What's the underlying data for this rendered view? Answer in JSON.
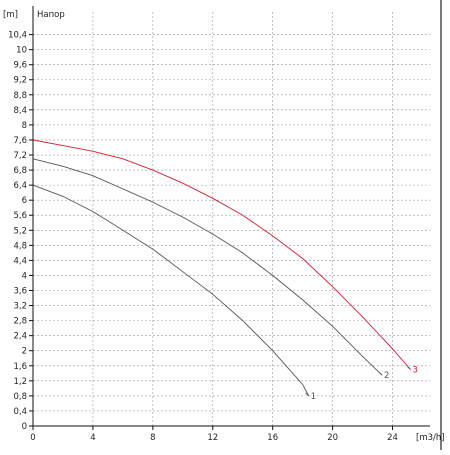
{
  "chart_data": {
    "type": "line",
    "y_unit_label": "[m]",
    "y_title": "Напор",
    "x_unit_label": "[m3/h]",
    "xlim": [
      0,
      26.5
    ],
    "ylim": [
      0,
      11.0
    ],
    "x_ticks": [
      0,
      4,
      8,
      12,
      16,
      20,
      24
    ],
    "y_ticks": [
      0,
      0.4,
      0.8,
      1.2,
      1.6,
      2,
      2.4,
      2.8,
      3.2,
      3.6,
      4,
      4.4,
      4.8,
      5.2,
      5.6,
      6,
      6.4,
      6.8,
      7.2,
      7.6,
      8,
      8.4,
      8.8,
      9.2,
      9.6,
      10,
      10.4
    ],
    "x_tick_labels": [
      "0",
      "4",
      "8",
      "12",
      "16",
      "20",
      "24"
    ],
    "y_tick_labels": [
      "0",
      "0,4",
      "0,8",
      "1,2",
      "1,6",
      "2",
      "2,4",
      "2,8",
      "3,2",
      "3,6",
      "4",
      "4,4",
      "4,8",
      "5,2",
      "5,6",
      "6",
      "6,4",
      "6,8",
      "7,2",
      "7,6",
      "8",
      "8,4",
      "8,8",
      "9,2",
      "9,6",
      "10",
      "10,4"
    ],
    "grid": true,
    "series": [
      {
        "name": "1",
        "color": "#555555",
        "x": [
          0,
          2,
          4,
          6,
          8,
          10,
          12,
          14,
          16,
          18,
          18.4
        ],
        "y": [
          6.4,
          6.1,
          5.7,
          5.2,
          4.7,
          4.1,
          3.5,
          2.8,
          2.0,
          1.1,
          0.8
        ]
      },
      {
        "name": "2",
        "color": "#555555",
        "x": [
          0,
          2,
          4,
          6,
          8,
          10,
          12,
          14,
          16,
          18,
          20,
          22,
          23.3
        ],
        "y": [
          7.1,
          6.9,
          6.65,
          6.3,
          5.95,
          5.55,
          5.1,
          4.6,
          4.0,
          3.35,
          2.65,
          1.85,
          1.35
        ]
      },
      {
        "name": "3",
        "color": "#cc2233",
        "x": [
          0,
          2,
          4,
          6,
          8,
          10,
          12,
          14,
          16,
          18,
          20,
          22,
          24,
          25.2
        ],
        "y": [
          7.6,
          7.45,
          7.3,
          7.1,
          6.8,
          6.45,
          6.05,
          5.6,
          5.05,
          4.45,
          3.7,
          2.9,
          2.05,
          1.5
        ]
      }
    ]
  }
}
